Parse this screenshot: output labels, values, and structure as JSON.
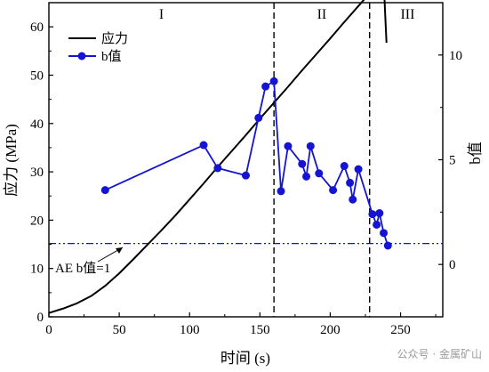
{
  "chart_data": {
    "type": "line",
    "xlabel": "时间 (s)",
    "ylabel_left": "应力 (MPa)",
    "ylabel_right": "b值",
    "xlim": [
      0,
      280
    ],
    "ylim_left": [
      0,
      65
    ],
    "ylim_right": [
      -2.5,
      12.5
    ],
    "xticks": [
      0,
      50,
      100,
      150,
      200,
      250
    ],
    "yticks_left": [
      0,
      10,
      20,
      30,
      40,
      50,
      60
    ],
    "yticks_right": [
      0,
      5,
      10
    ],
    "legend_position": "top-left",
    "regions": [
      {
        "label": "I",
        "x": 80
      },
      {
        "label": "II",
        "x": 194
      },
      {
        "label": "III",
        "x": 255
      }
    ],
    "boundaries": [
      160,
      228
    ],
    "threshold": {
      "label": "AE b值=1",
      "b_value": 1
    },
    "series": [
      {
        "name": "应力",
        "axis": "left",
        "color": "#000000",
        "x": [
          0,
          10,
          20,
          30,
          40,
          50,
          60,
          70,
          80,
          90,
          100,
          110,
          120,
          130,
          140,
          150,
          160,
          170,
          180,
          190,
          200,
          210,
          220,
          230,
          235,
          238,
          239,
          240
        ],
        "y": [
          0.8,
          1.7,
          2.8,
          4.3,
          6.4,
          9.0,
          11.9,
          14.9,
          17.9,
          21.0,
          24.3,
          27.6,
          31.0,
          34.3,
          37.6,
          41.0,
          44.3,
          47.6,
          51.0,
          54.3,
          57.6,
          61.0,
          64.3,
          67.6,
          69.5,
          69.8,
          63.0,
          56.7
        ]
      },
      {
        "name": "b值",
        "axis": "right",
        "color": "#1414d2",
        "x": [
          40,
          110,
          120,
          140,
          149,
          154,
          160,
          165,
          170,
          180,
          183,
          186,
          192,
          202,
          210,
          214,
          216,
          220,
          230,
          233,
          235,
          238,
          241
        ],
        "y": [
          3.55,
          5.7,
          4.6,
          4.25,
          7.0,
          8.5,
          8.75,
          3.5,
          5.65,
          4.8,
          4.2,
          5.65,
          4.35,
          3.55,
          4.7,
          3.9,
          3.1,
          4.55,
          2.4,
          1.9,
          2.45,
          1.5,
          0.9
        ]
      }
    ]
  },
  "watermark": "公众号 · 金属矿山"
}
